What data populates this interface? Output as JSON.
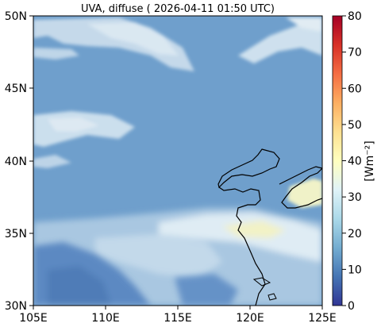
{
  "title": "UVA, diffuse ( 2026-04-11 01:50 UTC)",
  "map": {
    "lon_ticks": [
      "105E",
      "110E",
      "115E",
      "120E",
      "125E"
    ],
    "lat_ticks": [
      "30N",
      "35N",
      "40N",
      "45N",
      "50N"
    ],
    "lon_range": [
      105,
      125
    ],
    "lat_range": [
      30,
      50
    ],
    "field_description_colors": {
      "background": "#6f9fcc",
      "cloud_light": "#dbe9f3",
      "cloud_bright": "#eef5f8",
      "low_value": "#3f6fb0",
      "high_value": "#f3f0b0",
      "coastline": "#000000"
    }
  },
  "colorbar": {
    "label": "[Wm⁻²]",
    "ticks": [
      "0",
      "10",
      "20",
      "30",
      "40",
      "50",
      "60",
      "70",
      "80"
    ],
    "range": [
      0,
      80
    ],
    "colormap": "RdYlBu_r"
  }
}
